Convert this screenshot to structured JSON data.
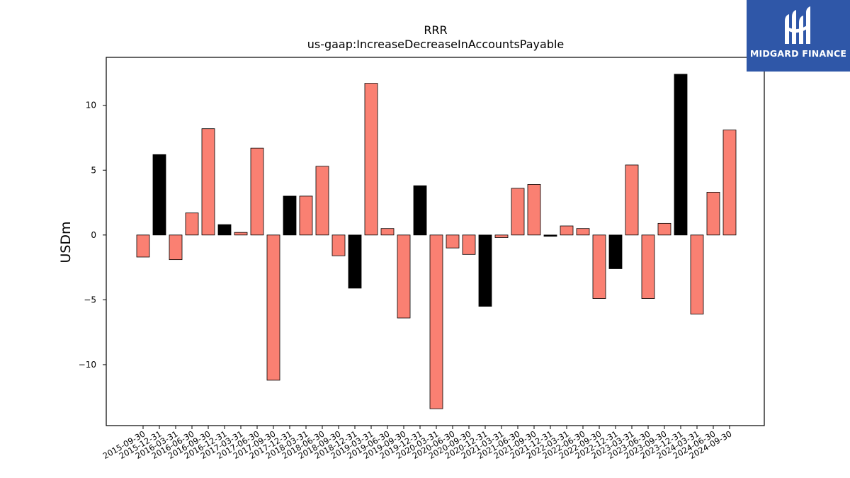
{
  "logo": {
    "brand_name": "MIDGARD FINANCE",
    "icon": "midgard-m-logo-icon",
    "background_color": "#2f57a8"
  },
  "chart_data": {
    "type": "bar",
    "title": "RRR",
    "subtitle": "us-gaap:IncreaseDecreaseInAccountsPayable",
    "xlabel": "",
    "ylabel": "USDm",
    "ylim": [
      -14.7,
      13.7
    ],
    "yticks": [
      -10,
      -5,
      0,
      5,
      10
    ],
    "ytick_labels": [
      "−10",
      "−5",
      "0",
      "5",
      "10"
    ],
    "grid": false,
    "legend": "none",
    "colors": {
      "quarterly": "#fa8072",
      "fiscal_year_end": "#000000",
      "edge": "#000000"
    },
    "categories": [
      "2015-09-30",
      "2015-12-31",
      "2016-03-31",
      "2016-06-30",
      "2016-09-30",
      "2016-12-31",
      "2017-03-31",
      "2017-06-30",
      "2017-09-30",
      "2017-12-31",
      "2018-03-31",
      "2018-06-30",
      "2018-09-30",
      "2018-12-31",
      "2019-03-31",
      "2019-06-30",
      "2019-09-30",
      "2019-12-31",
      "2020-03-31",
      "2020-06-30",
      "2020-09-30",
      "2020-12-31",
      "2021-03-31",
      "2021-06-30",
      "2021-09-30",
      "2021-12-31",
      "2022-03-31",
      "2022-06-30",
      "2022-09-30",
      "2022-12-31",
      "2023-03-31",
      "2023-06-30",
      "2023-09-30",
      "2023-12-31",
      "2024-03-31",
      "2024-06-30",
      "2024-09-30"
    ],
    "values": [
      -1.7,
      6.2,
      -1.9,
      1.7,
      8.2,
      0.8,
      0.2,
      6.7,
      -11.2,
      3.0,
      3.0,
      5.3,
      -1.6,
      -4.1,
      11.7,
      0.5,
      -6.4,
      3.8,
      -13.4,
      -1.0,
      -1.5,
      -5.5,
      -0.2,
      3.6,
      3.9,
      -0.1,
      0.7,
      0.5,
      -4.9,
      -2.6,
      5.4,
      -4.9,
      0.9,
      12.4,
      -6.1,
      3.3,
      8.1
    ],
    "highlight": [
      false,
      true,
      false,
      false,
      false,
      true,
      false,
      false,
      false,
      true,
      false,
      false,
      false,
      true,
      false,
      false,
      false,
      true,
      false,
      false,
      false,
      true,
      false,
      false,
      false,
      true,
      false,
      false,
      false,
      true,
      false,
      false,
      false,
      true,
      false,
      false,
      false
    ]
  }
}
